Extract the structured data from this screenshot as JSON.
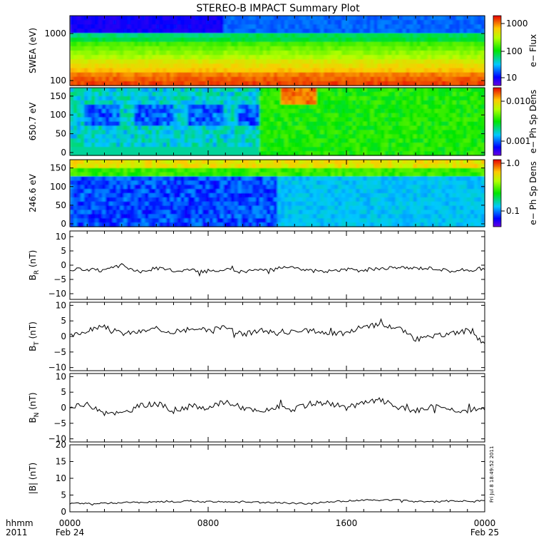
{
  "figure": {
    "title": "STEREO-B IMPACT Summary Plot",
    "timestamp": "Fri Jul  8 18:49:52 2011",
    "time_label": "hhmm",
    "year_label": "2011"
  },
  "colors": {
    "background": "#ffffff",
    "line": "#000000"
  },
  "chart_data": [
    {
      "type": "heatmap",
      "ylabel": "SWEA (eV)",
      "colorbar_label": "e− Flux",
      "y_ticks": [
        "1000",
        "100"
      ],
      "colorbar_ticks": [
        "1000",
        "100",
        "10"
      ],
      "colorbar_scale": "log",
      "colorbar_range": [
        5,
        2500
      ],
      "y_scale": "log",
      "note": "high-energy bins ~10 (blue) before ~0900 UT, ~40 after; low-energy bins ~1000-2000 (orange/red)"
    },
    {
      "type": "heatmap",
      "ylabel": "650.7 eV",
      "colorbar_label": "e− Ph Sp Dens",
      "y_ticks": [
        "150",
        "100",
        "50",
        "0"
      ],
      "ylim": [
        0,
        180
      ],
      "colorbar_ticks": [
        "0.010",
        "0.001"
      ],
      "colorbar_scale": "log"
    },
    {
      "type": "heatmap",
      "ylabel": "246.6 eV",
      "colorbar_label": "e− Ph Sp Dens",
      "y_ticks": [
        "150",
        "100",
        "50",
        "0"
      ],
      "ylim": [
        0,
        180
      ],
      "colorbar_ticks": [
        "1.0",
        "0.1"
      ],
      "colorbar_scale": "log"
    },
    {
      "type": "line",
      "ylabel": "B",
      "ylabel_sub": "R",
      "ylabel_unit": "(nT)",
      "ylim": [
        -12,
        12
      ],
      "y_ticks": [
        "10",
        "5",
        "0",
        "−5",
        "−10"
      ],
      "x_hours": [
        0,
        1,
        2,
        3,
        4,
        5,
        6,
        7,
        8,
        9,
        10,
        11,
        12,
        13,
        14,
        15,
        16,
        17,
        18,
        19,
        20,
        21,
        22,
        23,
        24
      ],
      "values": [
        -1.5,
        -1.5,
        -2.0,
        0.0,
        -2.5,
        -1.0,
        -2.0,
        -1.5,
        -2.5,
        -1.5,
        -2.5,
        -1.5,
        -1.0,
        -1.0,
        -2.0,
        -2.0,
        -1.5,
        -2.0,
        -1.0,
        -1.0,
        -1.0,
        -1.0,
        -2.0,
        -2.0,
        -1.5
      ]
    },
    {
      "type": "line",
      "ylabel": "B",
      "ylabel_sub": "T",
      "ylabel_unit": "(nT)",
      "ylim": [
        -11,
        11
      ],
      "y_ticks": [
        "10",
        "5",
        "0",
        "−5",
        "−10"
      ],
      "x_hours": [
        0,
        1,
        2,
        3,
        4,
        5,
        6,
        7,
        8,
        9,
        10,
        11,
        12,
        13,
        14,
        15,
        16,
        17,
        18,
        19,
        20,
        21,
        22,
        23,
        24
      ],
      "values": [
        0.0,
        2.0,
        3.0,
        1.0,
        1.5,
        2.5,
        1.5,
        2.0,
        2.0,
        3.5,
        0.5,
        2.0,
        1.0,
        1.5,
        2.0,
        1.0,
        1.0,
        3.5,
        3.5,
        3.0,
        -1.0,
        0.0,
        1.0,
        2.0,
        -2.5
      ]
    },
    {
      "type": "line",
      "ylabel": "B",
      "ylabel_sub": "N",
      "ylabel_unit": "(nT)",
      "ylim": [
        -11,
        11
      ],
      "y_ticks": [
        "10",
        "5",
        "0",
        "−5",
        "−10"
      ],
      "x_hours": [
        0,
        1,
        2,
        3,
        4,
        5,
        6,
        7,
        8,
        9,
        10,
        11,
        12,
        13,
        14,
        15,
        16,
        17,
        18,
        19,
        20,
        21,
        22,
        23,
        24
      ],
      "values": [
        0.0,
        1.0,
        -1.0,
        -2.0,
        0.5,
        1.5,
        -1.0,
        0.5,
        0.0,
        2.0,
        0.0,
        -1.5,
        0.0,
        -0.5,
        1.5,
        1.5,
        0.0,
        1.5,
        2.5,
        0.0,
        -1.0,
        0.5,
        -0.5,
        -1.0,
        0.0
      ]
    },
    {
      "type": "line",
      "ylabel": "|B| (nT)",
      "ylim": [
        0,
        20
      ],
      "y_ticks": [
        "20",
        "15",
        "10",
        "5",
        "0"
      ],
      "x_hours": [
        0,
        1,
        2,
        3,
        4,
        5,
        6,
        7,
        8,
        9,
        10,
        11,
        12,
        13,
        14,
        15,
        16,
        17,
        18,
        19,
        20,
        21,
        22,
        23,
        24
      ],
      "values": [
        2.5,
        2.5,
        2.5,
        2.8,
        2.8,
        3.0,
        3.0,
        3.2,
        3.0,
        3.0,
        3.0,
        2.8,
        2.8,
        2.5,
        2.5,
        3.0,
        3.2,
        3.5,
        3.5,
        3.5,
        3.0,
        3.0,
        3.2,
        3.2,
        3.2
      ]
    }
  ],
  "x_axis": {
    "range_hours": [
      0,
      24
    ],
    "tick_labels": [
      "0000",
      "0800",
      "1600",
      "0000"
    ],
    "date_labels": [
      "Feb 24",
      "Feb 25"
    ]
  }
}
